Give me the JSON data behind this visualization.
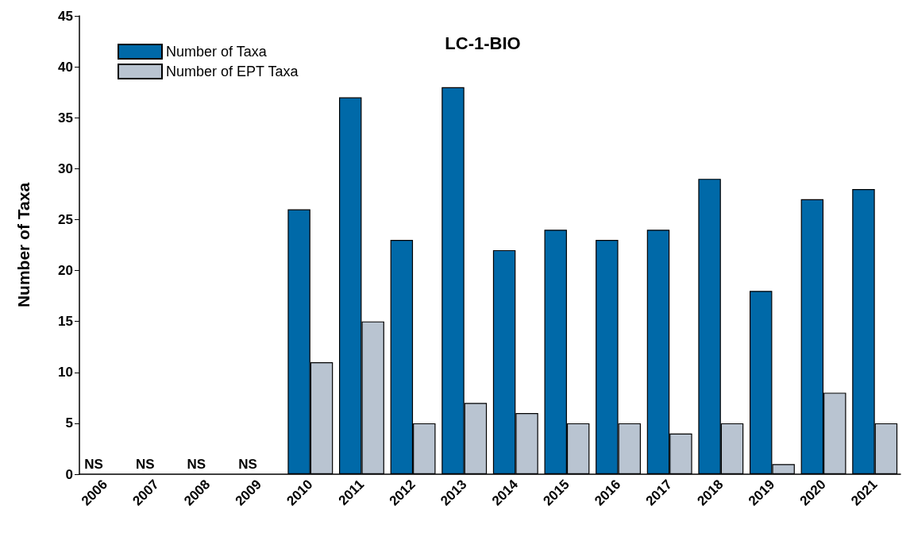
{
  "chart_data": {
    "type": "bar",
    "title": "LC-1-BIO",
    "ylabel": "Number of Taxa",
    "categories": [
      "2006",
      "2007",
      "2008",
      "2009",
      "2010",
      "2011",
      "2012",
      "2013",
      "2014",
      "2015",
      "2016",
      "2017",
      "2018",
      "2019",
      "2020",
      "2021"
    ],
    "series": [
      {
        "name": "Number of Taxa",
        "color": "#0069a8",
        "values": [
          null,
          null,
          null,
          null,
          26,
          37,
          23,
          38,
          22,
          24,
          23,
          24,
          29,
          18,
          27,
          28
        ]
      },
      {
        "name": "Number of EPT Taxa",
        "color": "#b9c4d1",
        "values": [
          null,
          null,
          null,
          null,
          11,
          15,
          5,
          7,
          6,
          5,
          5,
          4,
          5,
          1,
          8,
          5
        ]
      }
    ],
    "ylim": [
      0,
      45
    ],
    "yticks": [
      0,
      5,
      10,
      15,
      20,
      25,
      30,
      35,
      40,
      45
    ],
    "grid": false,
    "legend": "top left",
    "annotations": [
      "NS",
      "NS",
      "NS",
      "NS"
    ]
  }
}
